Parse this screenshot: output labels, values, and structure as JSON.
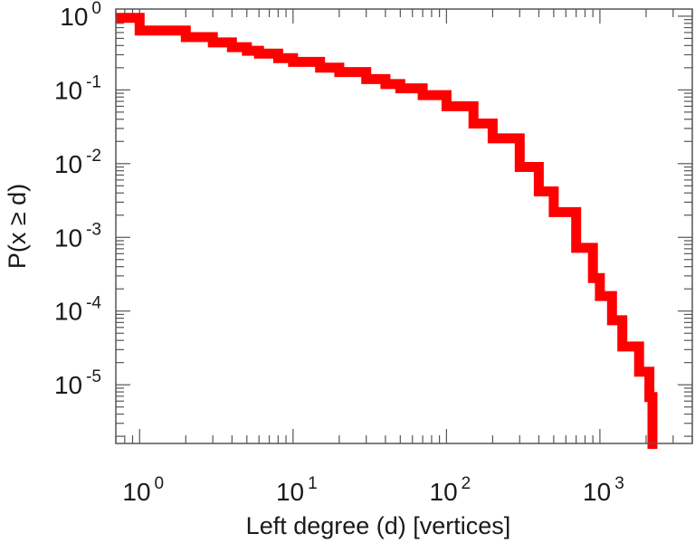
{
  "chart_data": {
    "type": "line",
    "title": "",
    "xlabel": "Left degree (d) [vertices]",
    "ylabel": "P(x ≥ d)",
    "xscale": "log",
    "yscale": "log",
    "xlim": [
      0.7,
      4000
    ],
    "ylim": [
      1.6e-06,
      1.25
    ],
    "grid": false,
    "legend": "none",
    "x_ticks": [
      {
        "base": "10",
        "exp": "0",
        "value": 1
      },
      {
        "base": "10",
        "exp": "1",
        "value": 10
      },
      {
        "base": "10",
        "exp": "2",
        "value": 100
      },
      {
        "base": "10",
        "exp": "3",
        "value": 1000
      }
    ],
    "y_ticks": [
      {
        "base": "10",
        "exp": "0",
        "value": 1
      },
      {
        "base": "10",
        "exp": "-1",
        "value": 0.1
      },
      {
        "base": "10",
        "exp": "-2",
        "value": 0.01
      },
      {
        "base": "10",
        "exp": "-3",
        "value": 0.001
      },
      {
        "base": "10",
        "exp": "-4",
        "value": 0.0001
      },
      {
        "base": "10",
        "exp": "-5",
        "value": 1e-05
      }
    ],
    "series": [
      {
        "color": "#ff0000",
        "style": "step",
        "x": [
          0.7,
          1,
          2,
          3,
          4,
          5,
          6,
          8,
          10,
          15,
          20,
          30,
          40,
          50,
          70,
          100,
          150,
          200,
          300,
          400,
          500,
          700,
          900,
          1000,
          1200,
          1400,
          1800,
          2100,
          2200
        ],
        "y": [
          0.95,
          0.64,
          0.52,
          0.44,
          0.38,
          0.34,
          0.31,
          0.27,
          0.24,
          0.2,
          0.175,
          0.14,
          0.12,
          0.105,
          0.085,
          0.06,
          0.035,
          0.022,
          0.009,
          0.0042,
          0.0022,
          0.00072,
          0.00028,
          0.00016,
          7.5e-05,
          3.3e-05,
          1.5e-05,
          6.8e-06,
          1.6e-06
        ]
      }
    ]
  }
}
